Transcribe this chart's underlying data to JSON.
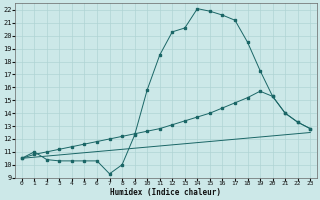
{
  "xlabel": "Humidex (Indice chaleur)",
  "bg_color": "#cce8e8",
  "grid_color": "#b0d4d4",
  "line_color": "#1a6666",
  "xlim": [
    -0.5,
    23.5
  ],
  "ylim": [
    9,
    22.5
  ],
  "xticks": [
    0,
    1,
    2,
    3,
    4,
    5,
    6,
    7,
    8,
    9,
    10,
    11,
    12,
    13,
    14,
    15,
    16,
    17,
    18,
    19,
    20,
    21,
    22,
    23
  ],
  "yticks": [
    9,
    10,
    11,
    12,
    13,
    14,
    15,
    16,
    17,
    18,
    19,
    20,
    21,
    22
  ],
  "line1_x": [
    0,
    1,
    2,
    3,
    4,
    5,
    6,
    7,
    8,
    9,
    10,
    11,
    12,
    13,
    14,
    15,
    16,
    17,
    18,
    19,
    20,
    21,
    22,
    23
  ],
  "line1_y": [
    10.5,
    11.0,
    10.4,
    10.3,
    10.3,
    10.3,
    10.3,
    9.3,
    10.0,
    12.3,
    15.8,
    18.5,
    20.3,
    20.6,
    22.1,
    21.9,
    21.6,
    21.2,
    19.5,
    17.3,
    15.3,
    14.0,
    13.3,
    12.8
  ],
  "line2_x": [
    0,
    1,
    2,
    3,
    4,
    5,
    6,
    7,
    8,
    9,
    10,
    11,
    12,
    13,
    14,
    15,
    16,
    17,
    18,
    19,
    20,
    21,
    22,
    23
  ],
  "line2_y": [
    10.5,
    10.8,
    11.0,
    11.2,
    11.4,
    11.6,
    11.8,
    12.0,
    12.2,
    12.4,
    12.6,
    12.8,
    13.1,
    13.4,
    13.7,
    14.0,
    14.4,
    14.8,
    15.2,
    15.7,
    15.3,
    14.0,
    13.3,
    12.8
  ],
  "line3_x": [
    0,
    23
  ],
  "line3_y": [
    10.5,
    12.5
  ]
}
